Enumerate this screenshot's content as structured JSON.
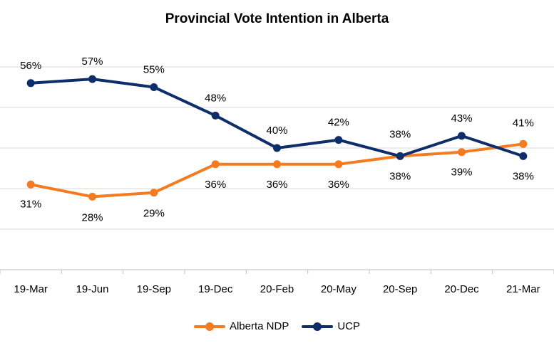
{
  "chart_data": {
    "type": "line",
    "title": "Provincial Vote Intention in Alberta",
    "categories": [
      "19-Mar",
      "19-Jun",
      "19-Sep",
      "19-Dec",
      "20-Feb",
      "20-May",
      "20-Sep",
      "20-Dec",
      "21-Mar"
    ],
    "ylim": [
      10,
      65
    ],
    "grid": true,
    "legend_position": "bottom",
    "series": [
      {
        "name": "Alberta NDP",
        "color": "#F47B20",
        "values": [
          31,
          28,
          29,
          36,
          36,
          36,
          38,
          39,
          41
        ],
        "labels": [
          "31%",
          "28%",
          "29%",
          "36%",
          "36%",
          "36%",
          "38%",
          "39%",
          "41%"
        ]
      },
      {
        "name": "UCP",
        "color": "#0E2D6B",
        "values": [
          56,
          57,
          55,
          48,
          40,
          42,
          38,
          43,
          38
        ],
        "labels": [
          "56%",
          "57%",
          "55%",
          "48%",
          "40%",
          "42%",
          "38%",
          "43%",
          "38%"
        ]
      }
    ]
  }
}
